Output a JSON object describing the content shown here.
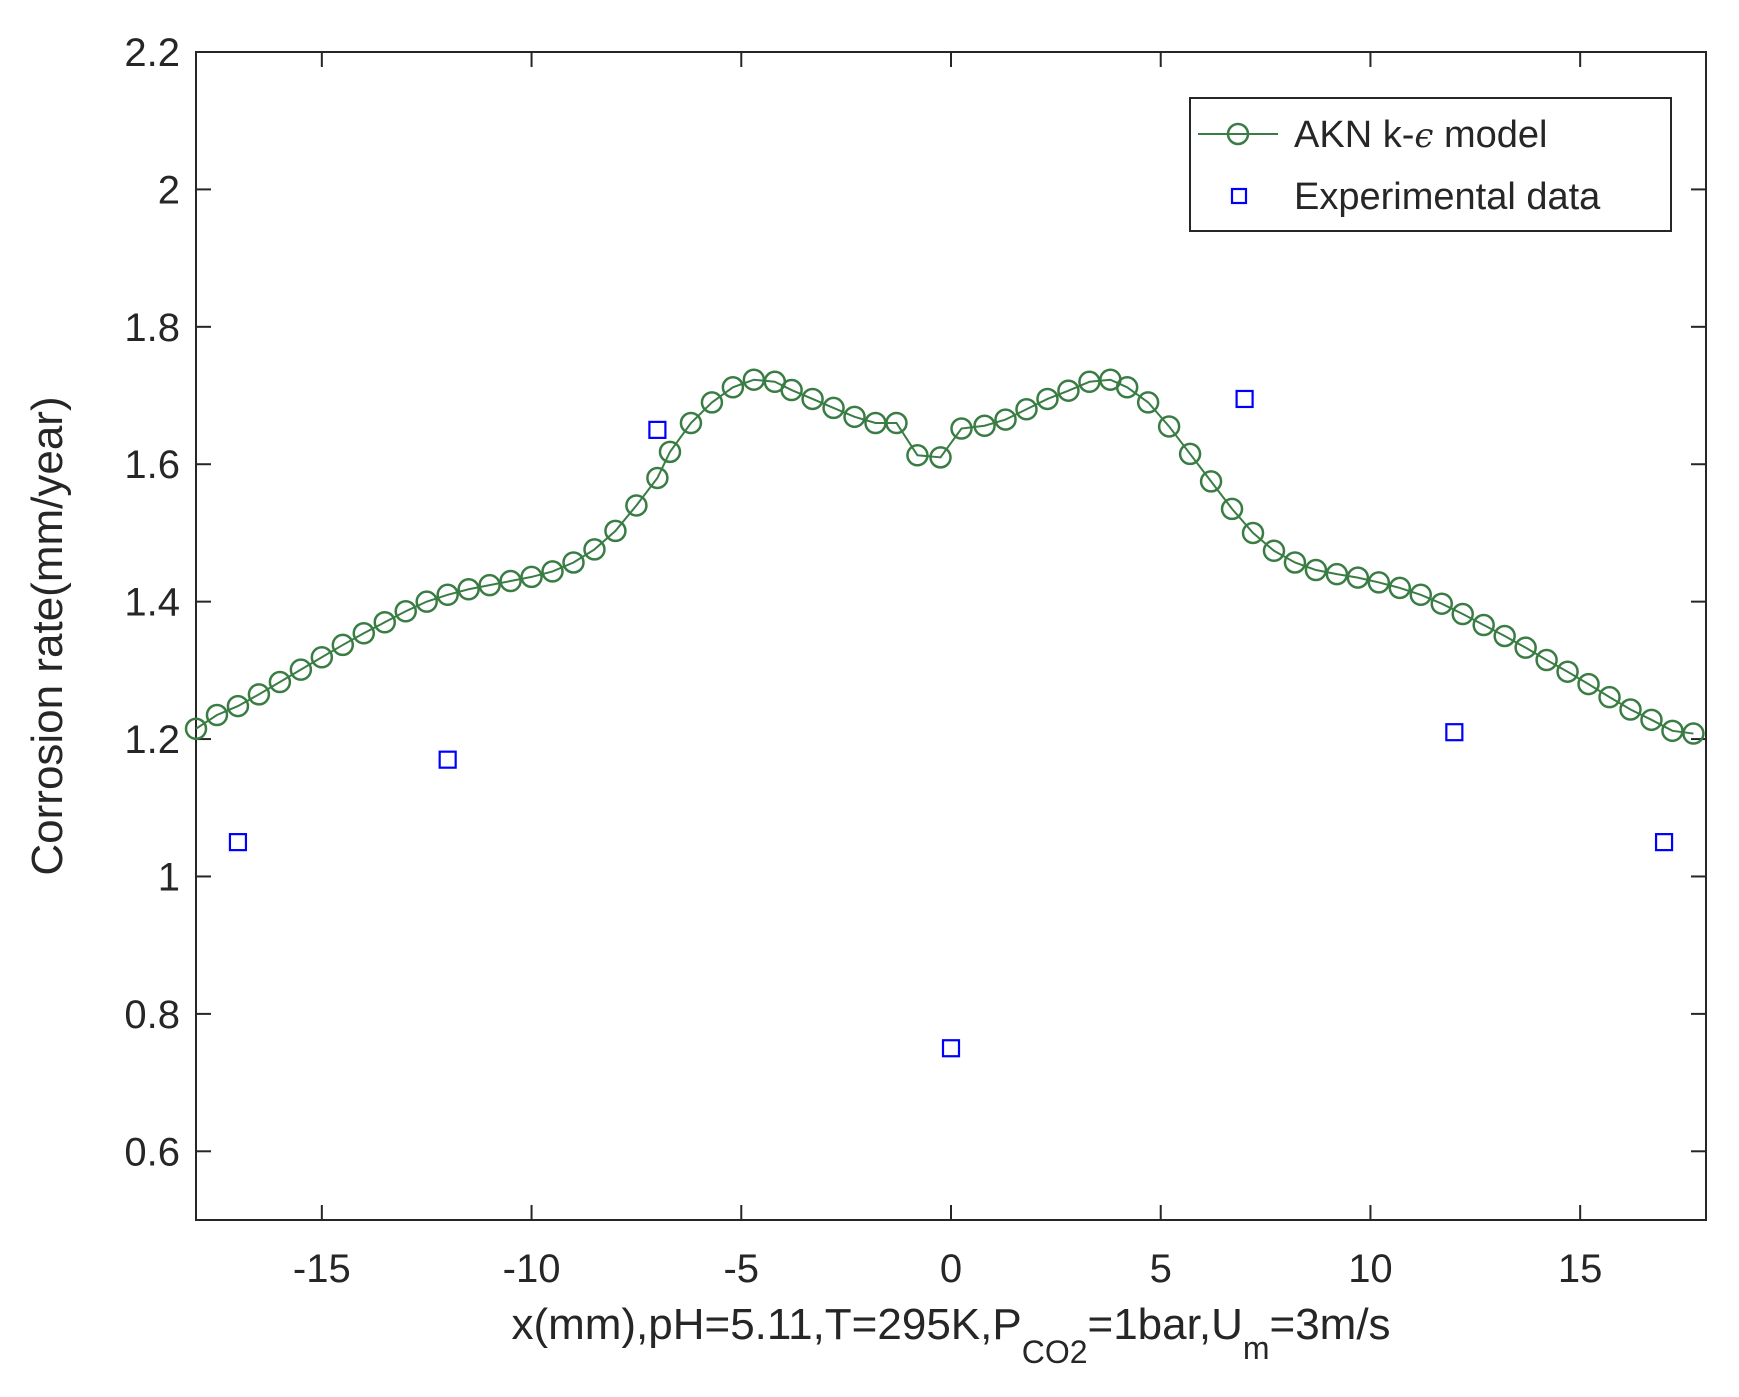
{
  "chart_data": {
    "type": "line",
    "title": "",
    "xlabel_parts": {
      "main": "x(mm),pH=5.11,T=295K,P",
      "p_sub": "CO2",
      "p_rest": "=1bar,U",
      "u_sub": "m",
      "u_rest": "=3m/s"
    },
    "ylabel": "Corrosion rate(mm/year)",
    "xlim": [
      -18,
      18
    ],
    "ylim": [
      0.5,
      2.2
    ],
    "xticks": [
      -15,
      -10,
      -5,
      0,
      5,
      10,
      15
    ],
    "yticks": [
      0.6,
      0.8,
      1,
      1.2,
      1.4,
      1.6,
      1.8,
      2,
      2.2
    ],
    "xtick_labels": [
      "-15",
      "-10",
      "-5",
      "0",
      "5",
      "10",
      "15"
    ],
    "ytick_labels": [
      "0.6",
      "0.8",
      "1",
      "1.2",
      "1.4",
      "1.6",
      "1.8",
      "2",
      "2.2"
    ],
    "legend_position": "top-right",
    "series": [
      {
        "name": "AKN k-ε model",
        "legend_label": "AKN k-",
        "legend_symbol": "ϵ",
        "legend_suffix": " model",
        "style": "line-circle",
        "color": "#3a7d44",
        "x": [
          -18,
          -17.5,
          -17,
          -16.5,
          -16,
          -15.5,
          -15,
          -14.5,
          -14,
          -13.5,
          -13,
          -12.5,
          -12,
          -11.5,
          -11,
          -10.5,
          -10,
          -9.5,
          -9,
          -8.5,
          -8,
          -7.5,
          -7,
          -6.7,
          -6.2,
          -5.7,
          -5.2,
          -4.7,
          -4.2,
          -3.8,
          -3.3,
          -2.8,
          -2.3,
          -1.8,
          -1.3,
          -0.8,
          -0.25,
          0.25,
          0.8,
          1.3,
          1.8,
          2.3,
          2.8,
          3.3,
          3.8,
          4.2,
          4.7,
          5.2,
          5.7,
          6.2,
          6.7,
          7.2,
          7.7,
          8.2,
          8.7,
          9.2,
          9.7,
          10.2,
          10.7,
          11.2,
          11.7,
          12.2,
          12.7,
          13.2,
          13.7,
          14.2,
          14.7,
          15.2,
          15.7,
          16.2,
          16.7,
          17.2,
          17.7
        ],
        "y": [
          1.215,
          1.235,
          1.248,
          1.265,
          1.283,
          1.301,
          1.319,
          1.337,
          1.354,
          1.37,
          1.386,
          1.4,
          1.41,
          1.418,
          1.424,
          1.43,
          1.436,
          1.444,
          1.457,
          1.476,
          1.503,
          1.54,
          1.58,
          1.618,
          1.66,
          1.69,
          1.712,
          1.723,
          1.72,
          1.708,
          1.695,
          1.682,
          1.669,
          1.66,
          1.66,
          1.613,
          1.61,
          1.652,
          1.656,
          1.665,
          1.68,
          1.695,
          1.707,
          1.72,
          1.723,
          1.712,
          1.69,
          1.655,
          1.615,
          1.575,
          1.535,
          1.5,
          1.474,
          1.457,
          1.446,
          1.44,
          1.435,
          1.428,
          1.42,
          1.41,
          1.397,
          1.382,
          1.366,
          1.35,
          1.333,
          1.315,
          1.298,
          1.28,
          1.261,
          1.243,
          1.228,
          1.212,
          1.208
        ]
      },
      {
        "name": "Experimental data",
        "legend_label": "Experimental data",
        "style": "square",
        "color": "#0000ff",
        "x": [
          -17,
          -12,
          -7,
          0,
          7,
          12,
          17
        ],
        "y": [
          1.05,
          1.17,
          1.65,
          0.75,
          1.695,
          1.21,
          1.05
        ]
      }
    ]
  }
}
